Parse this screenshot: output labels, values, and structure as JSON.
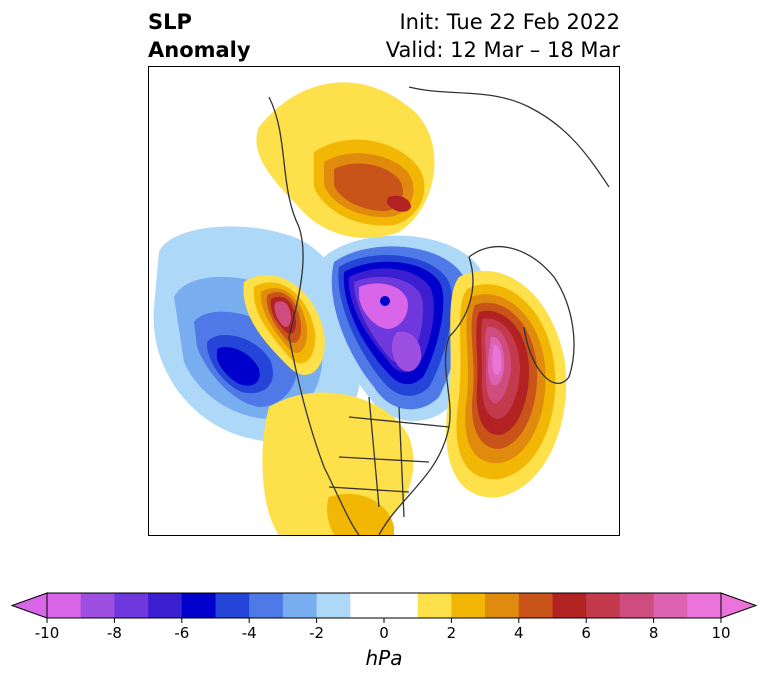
{
  "title": {
    "variable_line1": "SLP",
    "variable_line2": "Anomaly",
    "init": "Init: Tue 22 Feb 2022",
    "valid": "Valid: 12 Mar – 18 Mar"
  },
  "map": {
    "projection": "polar stereographic (North America / Arctic)",
    "features": [
      {
        "name": "arctic-low",
        "sign": "negative",
        "min_anomaly_hPa": -10
      },
      {
        "name": "north-pacific-low",
        "sign": "negative",
        "min_anomaly_hPa": -6
      },
      {
        "name": "greenland-high",
        "sign": "positive",
        "max_anomaly_hPa": 10
      },
      {
        "name": "scandinavia-russia-high",
        "sign": "positive",
        "max_anomaly_hPa": 6
      },
      {
        "name": "alaska-west-coast-high",
        "sign": "positive",
        "max_anomaly_hPa": 8
      },
      {
        "name": "conus-ridge",
        "sign": "positive",
        "max_anomaly_hPa": 2
      }
    ]
  },
  "colorbar": {
    "ticks": [
      "-10",
      "-8",
      "-6",
      "-4",
      "-2",
      "0",
      "2",
      "4",
      "6",
      "8",
      "10"
    ],
    "units": "hPa",
    "colors": [
      "#d966e8",
      "#9c4fe0",
      "#6e38dd",
      "#3a1ecf",
      "#0000cc",
      "#2545d8",
      "#4f79e6",
      "#78aef0",
      "#add8f8",
      "#ffffff",
      "#ffffff",
      "#fde04a",
      "#f2b705",
      "#e08a0e",
      "#c8541a",
      "#b22222",
      "#c23a4c",
      "#cf4d7e",
      "#de62b2",
      "#ea74da"
    ]
  }
}
